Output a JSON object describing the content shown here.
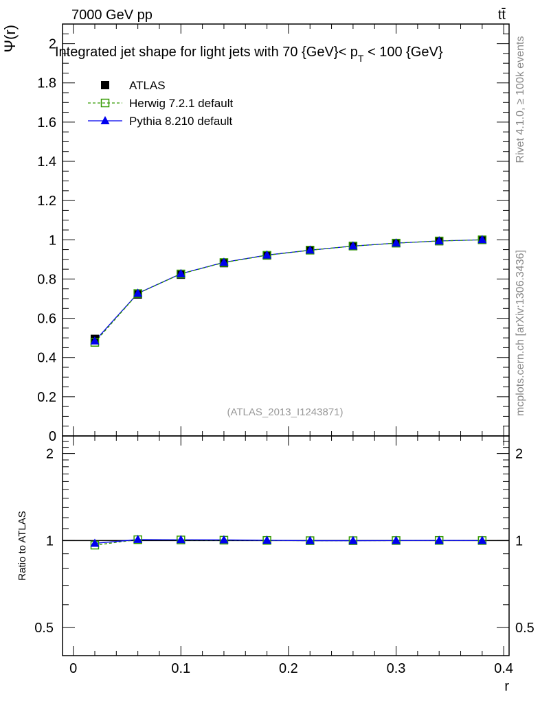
{
  "header": {
    "left": "7000 GeV pp",
    "right": "tt̄"
  },
  "side_labels": {
    "rivet": "Rivet 4.1.0, ≥ 100k events",
    "mcplots": "mcplots.cern.ch [arXiv:1306.3436]"
  },
  "colors": {
    "atlas": "#000000",
    "herwig": "#339900",
    "pythia": "#0000ee"
  },
  "chart_data": [
    {
      "type": "line",
      "title": "Integrated jet shape for light jets with 70 {GeV}< p_T < 100 {GeV}",
      "title_parts": {
        "main": "Integrated jet shape for light jets with 70 {GeV}< p",
        "sub": "T",
        "tail": " < 100 {GeV}"
      },
      "ylabel": "Ψ(r)",
      "xlabel": "",
      "watermark": "(ATLAS_2013_I1243871)",
      "xlim": [
        -0.01,
        0.405
      ],
      "ylim": [
        0,
        2.1
      ],
      "yticks": [
        0,
        0.2,
        0.4,
        0.6,
        0.8,
        1,
        1.2,
        1.4,
        1.6,
        1.8,
        2
      ],
      "ytick_labels": [
        "0",
        "0.2",
        "0.4",
        "0.6",
        "0.8",
        "1",
        "1.2",
        "1.4",
        "1.6",
        "1.8",
        "2"
      ],
      "legend_position": "top-left",
      "x": [
        0.02,
        0.06,
        0.1,
        0.14,
        0.18,
        0.22,
        0.26,
        0.3,
        0.34,
        0.38
      ],
      "series": [
        {
          "name": "ATLAS",
          "key": "atlas",
          "values": [
            0.495,
            0.721,
            0.822,
            0.881,
            0.92,
            0.948,
            0.969,
            0.983,
            0.993,
            1.0
          ]
        },
        {
          "name": "Herwig 7.2.1 default",
          "key": "herwig",
          "values": [
            0.477,
            0.726,
            0.826,
            0.884,
            0.921,
            0.947,
            0.968,
            0.983,
            0.994,
            1.0
          ]
        },
        {
          "name": "Pythia 8.210 default",
          "key": "pythia",
          "values": [
            0.484,
            0.727,
            0.827,
            0.885,
            0.922,
            0.947,
            0.968,
            0.983,
            0.994,
            1.0
          ]
        }
      ]
    },
    {
      "type": "line",
      "ylabel": "Ratio to ATLAS",
      "xlabel": "r",
      "yscale": "log",
      "xlim": [
        -0.01,
        0.405
      ],
      "ylim": [
        0.4,
        2.3
      ],
      "yticks": [
        0.5,
        1,
        2
      ],
      "ytick_labels": [
        "0.5",
        "1",
        "2"
      ],
      "xticks": [
        0,
        0.1,
        0.2,
        0.3,
        0.4
      ],
      "xtick_labels": [
        "0",
        "0.1",
        "0.2",
        "0.3",
        "0.4"
      ],
      "x": [
        0.02,
        0.06,
        0.1,
        0.14,
        0.18,
        0.22,
        0.26,
        0.3,
        0.34,
        0.38
      ],
      "series": [
        {
          "name": "Herwig 7.2.1 default",
          "key": "herwig",
          "values": [
            0.964,
            1.007,
            1.005,
            1.003,
            1.001,
            0.999,
            0.999,
            1.0,
            1.001,
            1.0
          ]
        },
        {
          "name": "Pythia 8.210 default",
          "key": "pythia",
          "values": [
            0.978,
            1.008,
            1.006,
            1.005,
            1.002,
            0.999,
            0.999,
            1.0,
            1.001,
            1.0
          ]
        }
      ]
    }
  ]
}
